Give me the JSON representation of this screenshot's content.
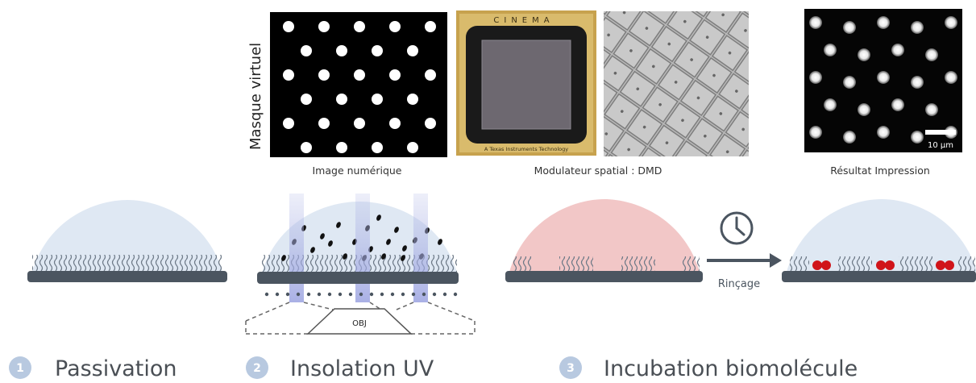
{
  "virtual_mask_label": "Masque virtuel",
  "panels": {
    "digital_image": "Image numérique",
    "modulator": "Modulateur spatial : DMD",
    "result": "Résultat Impression",
    "chip_brand": "CINEMA",
    "chip_footer": "A Texas Instruments Technology",
    "scale_bar": "10 µm"
  },
  "objective_label": "OBJ",
  "rinse_label": "Rinçage",
  "steps": [
    {
      "number": "1",
      "label": "Passivation"
    },
    {
      "number": "2",
      "label": "Insolation UV"
    },
    {
      "number": "3",
      "label": "Incubation biomolécule"
    }
  ],
  "colors": {
    "dome": "#dfe8f3",
    "dome_pink": "#f2c7c7",
    "substrate": "#4b5560",
    "uv_beam": "#b7bde8",
    "protein": "#d0141a",
    "step_badge": "#b8c9e0"
  }
}
